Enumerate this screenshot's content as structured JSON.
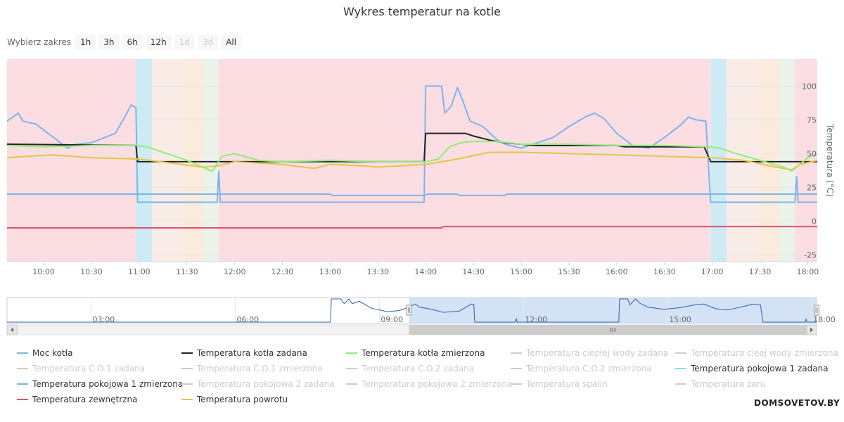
{
  "page": {
    "title": "Wykres temperatur na kotle"
  },
  "range_selector": {
    "label": "Wybierz zakres",
    "buttons": [
      {
        "label": "1h",
        "enabled": true
      },
      {
        "label": "3h",
        "enabled": true
      },
      {
        "label": "6h",
        "enabled": true
      },
      {
        "label": "12h",
        "enabled": true
      },
      {
        "label": "1d",
        "enabled": false
      },
      {
        "label": "3d",
        "enabled": false
      },
      {
        "label": "All",
        "enabled": true
      }
    ]
  },
  "watermark": "DOMSOVETOV.BY",
  "colors": {
    "state_fill": "#fcdde1",
    "state_sky": "#cdebf5",
    "state_cream": "#f9ece7",
    "state_peach": "#fceadb",
    "state_mint": "#eaf2ea",
    "moc": "#7cb5ec",
    "zadana": "#222222",
    "zmierzona": "#90ed7d",
    "pokojowa1z": "#7cb5ec",
    "zewnetrzna": "#d9536f",
    "powrotu": "#e4c646",
    "hidden": "#cccccc",
    "navigator_mask": "#d3e3f5"
  },
  "chart_data": {
    "type": "line",
    "title": "Wykres temperatur na kotle",
    "xlabel": "",
    "ylabel": "Temperatura (°C)",
    "x_range": [
      "09:37",
      "18:06"
    ],
    "ylim": [
      -30,
      120
    ],
    "y_ticks": [
      -25,
      0,
      25,
      50,
      75,
      100
    ],
    "x_ticks": [
      "10:00",
      "10:30",
      "11:00",
      "11:30",
      "12:00",
      "12:30",
      "13:00",
      "13:30",
      "14:00",
      "14:30",
      "15:00",
      "15:30",
      "16:00",
      "16:30",
      "17:00",
      "17:30",
      "18:00"
    ],
    "grid": true,
    "background_bands": [
      {
        "from": "09:37",
        "to": "10:58",
        "color": "state_fill"
      },
      {
        "from": "10:58",
        "to": "11:08",
        "color": "state_sky"
      },
      {
        "from": "11:08",
        "to": "11:29",
        "color": "state_cream"
      },
      {
        "from": "11:29",
        "to": "11:40",
        "color": "state_peach"
      },
      {
        "from": "11:40",
        "to": "11:50",
        "color": "state_mint"
      },
      {
        "from": "11:50",
        "to": "16:59",
        "color": "state_fill"
      },
      {
        "from": "16:59",
        "to": "17:09",
        "color": "state_sky"
      },
      {
        "from": "17:09",
        "to": "17:30",
        "color": "state_cream"
      },
      {
        "from": "17:30",
        "to": "17:42",
        "color": "state_peach"
      },
      {
        "from": "17:42",
        "to": "17:52",
        "color": "state_mint"
      },
      {
        "from": "17:52",
        "to": "18:06",
        "color": "state_fill"
      }
    ],
    "series": [
      {
        "name": "Moc kotła",
        "color": "moc",
        "visible": true,
        "points": [
          [
            "09:37",
            74
          ],
          [
            "09:44",
            80
          ],
          [
            "09:47",
            74
          ],
          [
            "09:55",
            72
          ],
          [
            "10:05",
            63
          ],
          [
            "10:15",
            54
          ],
          [
            "10:20",
            57
          ],
          [
            "10:30",
            58
          ],
          [
            "10:45",
            65
          ],
          [
            "10:50",
            75
          ],
          [
            "10:55",
            86
          ],
          [
            "10:58",
            84
          ],
          [
            "10:59",
            14
          ],
          [
            "11:49",
            14
          ],
          [
            "11:50",
            37
          ],
          [
            "11:51",
            14
          ],
          [
            "13:59",
            14
          ],
          [
            "14:00",
            100
          ],
          [
            "14:10",
            100
          ],
          [
            "14:12",
            80
          ],
          [
            "14:16",
            85
          ],
          [
            "14:20",
            99
          ],
          [
            "14:23",
            90
          ],
          [
            "14:28",
            74
          ],
          [
            "14:36",
            70
          ],
          [
            "14:45",
            60
          ],
          [
            "14:50",
            57
          ],
          [
            "15:00",
            54
          ],
          [
            "15:10",
            58
          ],
          [
            "15:20",
            62
          ],
          [
            "15:30",
            70
          ],
          [
            "15:40",
            77
          ],
          [
            "15:46",
            80
          ],
          [
            "15:52",
            76
          ],
          [
            "16:00",
            65
          ],
          [
            "16:10",
            56
          ],
          [
            "16:20",
            54
          ],
          [
            "16:30",
            62
          ],
          [
            "16:40",
            71
          ],
          [
            "16:45",
            77
          ],
          [
            "16:50",
            75
          ],
          [
            "16:56",
            74
          ],
          [
            "16:59",
            14
          ],
          [
            "17:52",
            14
          ],
          [
            "17:53",
            33
          ],
          [
            "17:54",
            14
          ],
          [
            "18:06",
            14
          ]
        ]
      },
      {
        "name": "Temperatura kotła zadana",
        "color": "zadana",
        "visible": true,
        "points": [
          [
            "09:37",
            57
          ],
          [
            "10:58",
            56
          ],
          [
            "10:59",
            44
          ],
          [
            "13:59",
            44
          ],
          [
            "14:00",
            65
          ],
          [
            "14:25",
            65
          ],
          [
            "14:30",
            63
          ],
          [
            "14:40",
            60
          ],
          [
            "14:50",
            58
          ],
          [
            "15:00",
            57
          ],
          [
            "15:10",
            56
          ],
          [
            "16:00",
            56
          ],
          [
            "16:05",
            55
          ],
          [
            "16:55",
            55
          ],
          [
            "16:59",
            44
          ],
          [
            "18:06",
            44
          ]
        ]
      },
      {
        "name": "Temperatura kotła zmierzona",
        "color": "zmierzona",
        "visible": true,
        "points": [
          [
            "09:37",
            56
          ],
          [
            "10:00",
            55
          ],
          [
            "10:30",
            56
          ],
          [
            "10:58",
            56
          ],
          [
            "11:05",
            55
          ],
          [
            "11:15",
            51
          ],
          [
            "11:30",
            45
          ],
          [
            "11:40",
            40
          ],
          [
            "11:46",
            37
          ],
          [
            "11:52",
            48
          ],
          [
            "12:00",
            50
          ],
          [
            "12:15",
            45
          ],
          [
            "12:30",
            44
          ],
          [
            "13:00",
            45
          ],
          [
            "13:30",
            44
          ],
          [
            "14:00",
            44
          ],
          [
            "14:08",
            46
          ],
          [
            "14:15",
            55
          ],
          [
            "14:22",
            58
          ],
          [
            "14:30",
            59
          ],
          [
            "14:45",
            59
          ],
          [
            "15:00",
            57
          ],
          [
            "15:30",
            57
          ],
          [
            "16:00",
            56
          ],
          [
            "16:30",
            56
          ],
          [
            "16:59",
            55
          ],
          [
            "17:05",
            54
          ],
          [
            "17:15",
            50
          ],
          [
            "17:30",
            45
          ],
          [
            "17:45",
            40
          ],
          [
            "17:50",
            37
          ],
          [
            "17:55",
            42
          ],
          [
            "18:00",
            47
          ],
          [
            "18:06",
            50
          ]
        ]
      },
      {
        "name": "Temperatura powrotu",
        "color": "powrotu",
        "visible": true,
        "points": [
          [
            "09:37",
            47
          ],
          [
            "09:50",
            48
          ],
          [
            "10:05",
            49
          ],
          [
            "10:30",
            47
          ],
          [
            "11:00",
            46
          ],
          [
            "11:20",
            43
          ],
          [
            "11:40",
            40
          ],
          [
            "11:50",
            41
          ],
          [
            "12:00",
            44
          ],
          [
            "12:30",
            42
          ],
          [
            "12:50",
            39
          ],
          [
            "13:00",
            42
          ],
          [
            "13:20",
            41
          ],
          [
            "13:30",
            40
          ],
          [
            "14:00",
            42
          ],
          [
            "14:20",
            46
          ],
          [
            "14:40",
            51
          ],
          [
            "15:00",
            51
          ],
          [
            "15:30",
            50
          ],
          [
            "16:00",
            49
          ],
          [
            "16:30",
            48
          ],
          [
            "17:00",
            47
          ],
          [
            "17:20",
            45
          ],
          [
            "17:40",
            40
          ],
          [
            "17:50",
            38
          ],
          [
            "17:55",
            42
          ],
          [
            "18:06",
            45
          ]
        ]
      },
      {
        "name": "Temperatura pokojowa 1 zmierzona",
        "color": "pokojowa1z",
        "visible": true,
        "points": [
          [
            "09:37",
            20
          ],
          [
            "13:00",
            20
          ],
          [
            "13:01",
            19
          ],
          [
            "14:00",
            19
          ],
          [
            "14:01",
            20
          ],
          [
            "14:20",
            20
          ],
          [
            "14:21",
            19
          ],
          [
            "14:50",
            19
          ],
          [
            "14:51",
            20
          ],
          [
            "18:06",
            20
          ]
        ]
      },
      {
        "name": "Temperatura zewnętrzna",
        "color": "zewnetrzna",
        "visible": true,
        "points": [
          [
            "09:37",
            -5
          ],
          [
            "14:10",
            -5
          ],
          [
            "14:11",
            -4
          ],
          [
            "18:06",
            -4
          ]
        ]
      }
    ],
    "legend": [
      {
        "name": "Moc kotła",
        "color": "moc",
        "visible": true
      },
      {
        "name": "Temperatura kotła zadana",
        "color": "zadana",
        "visible": true
      },
      {
        "name": "Temperatura kotła zmierzona",
        "color": "zmierzona",
        "visible": true
      },
      {
        "name": "Temperatura ciepłej wody zadana",
        "color": "hidden",
        "visible": false
      },
      {
        "name": "Temperatura cieej wody zmierzona",
        "color": "hidden",
        "visible": false
      },
      {
        "name": "Temperatura C.O.1 zadana",
        "color": "hidden",
        "visible": false
      },
      {
        "name": "Temperatura C.O.1 zmierzona",
        "color": "hidden",
        "visible": false
      },
      {
        "name": "Temperatura C.O.2 zadana",
        "color": "hidden",
        "visible": false
      },
      {
        "name": "Temperatura C.O.2 zmierzona",
        "color": "hidden",
        "visible": false
      },
      {
        "name": "Temperatura pokojowa 1 zadana",
        "color": "#7ee0e6",
        "visible": true
      },
      {
        "name": "Temperatura pokojowa 1 zmierzona",
        "color": "pokojowa1z",
        "visible": true
      },
      {
        "name": "Temperatura pokojowa 2 zadana",
        "color": "hidden",
        "visible": false
      },
      {
        "name": "Temperatura pokojowa 2 zmierzona",
        "color": "hidden",
        "visible": false
      },
      {
        "name": "Temperatura spalin",
        "color": "hidden",
        "visible": false
      },
      {
        "name": "Temperatura żaru",
        "color": "hidden",
        "visible": false
      },
      {
        "name": "Temperatura zewnętrzna",
        "color": "zewnetrzna",
        "visible": true
      },
      {
        "name": "Temperatura powrotu",
        "color": "powrotu",
        "visible": true
      }
    ],
    "navigator": {
      "x_range": [
        "01:15",
        "18:06"
      ],
      "x_ticks": [
        "03:00",
        "06:00",
        "09:00",
        "12:00",
        "15:00",
        "18:00"
      ],
      "selected": [
        "09:37",
        "18:06"
      ],
      "series_points": [
        [
          "01:15",
          0
        ],
        [
          "07:59",
          0
        ],
        [
          "08:00",
          100
        ],
        [
          "08:12",
          100
        ],
        [
          "08:16",
          80
        ],
        [
          "08:22",
          100
        ],
        [
          "08:26",
          80
        ],
        [
          "08:35",
          90
        ],
        [
          "08:50",
          60
        ],
        [
          "09:10",
          45
        ],
        [
          "09:25",
          50
        ],
        [
          "09:35",
          62
        ],
        [
          "09:45",
          78
        ],
        [
          "09:50",
          65
        ],
        [
          "10:05",
          55
        ],
        [
          "10:20",
          42
        ],
        [
          "10:40",
          48
        ],
        [
          "10:55",
          78
        ],
        [
          "10:58",
          76
        ],
        [
          "10:59",
          0
        ],
        [
          "11:50",
          0
        ],
        [
          "11:51",
          16
        ],
        [
          "11:52",
          0
        ],
        [
          "13:59",
          0
        ],
        [
          "14:00",
          100
        ],
        [
          "14:10",
          100
        ],
        [
          "14:13",
          75
        ],
        [
          "14:20",
          100
        ],
        [
          "14:25",
          82
        ],
        [
          "14:35",
          65
        ],
        [
          "14:55",
          55
        ],
        [
          "15:15",
          62
        ],
        [
          "15:35",
          75
        ],
        [
          "15:45",
          78
        ],
        [
          "16:00",
          58
        ],
        [
          "16:15",
          52
        ],
        [
          "16:35",
          68
        ],
        [
          "16:45",
          76
        ],
        [
          "16:56",
          74
        ],
        [
          "16:59",
          0
        ],
        [
          "17:52",
          0
        ],
        [
          "17:53",
          14
        ],
        [
          "17:54",
          0
        ],
        [
          "18:06",
          0
        ]
      ]
    }
  }
}
